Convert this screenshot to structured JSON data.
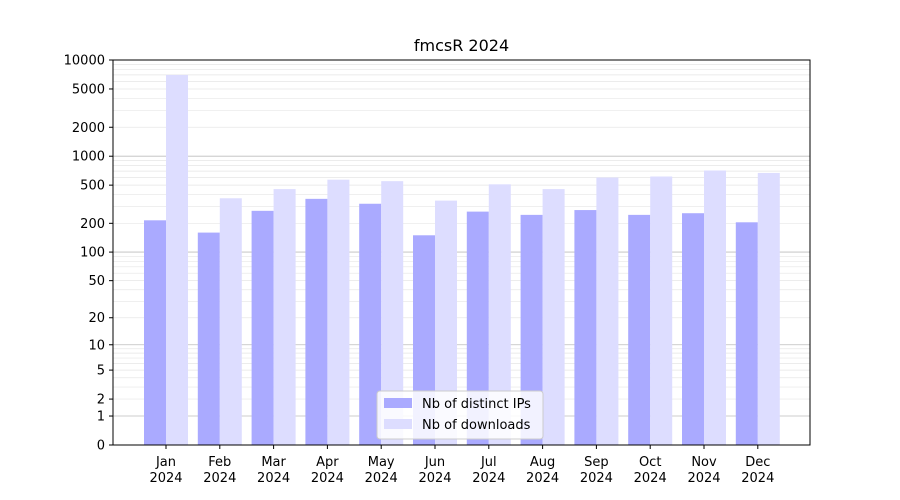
{
  "chart_data": {
    "type": "bar",
    "title": "fmcsR 2024",
    "scale": "symlog",
    "ylim": [
      0,
      10000
    ],
    "y_ticks": [
      0,
      1,
      2,
      5,
      10,
      20,
      50,
      100,
      200,
      500,
      1000,
      2000,
      5000,
      10000
    ],
    "categories": [
      "Jan\n2024",
      "Feb\n2024",
      "Mar\n2024",
      "Apr\n2024",
      "May\n2024",
      "Jun\n2024",
      "Jul\n2024",
      "Aug\n2024",
      "Sep\n2024",
      "Oct\n2024",
      "Nov\n2024",
      "Dec\n2024"
    ],
    "series": [
      {
        "name": "Nb of distinct IPs",
        "color": "#aaaaff",
        "values": [
          215,
          160,
          270,
          360,
          320,
          150,
          265,
          245,
          275,
          245,
          255,
          205
        ]
      },
      {
        "name": "Nb of downloads",
        "color": "#ddddff",
        "values": [
          7000,
          365,
          455,
          570,
          550,
          345,
          510,
          455,
          600,
          615,
          710,
          670
        ]
      }
    ],
    "grid": true,
    "legend": "bottom-center"
  }
}
